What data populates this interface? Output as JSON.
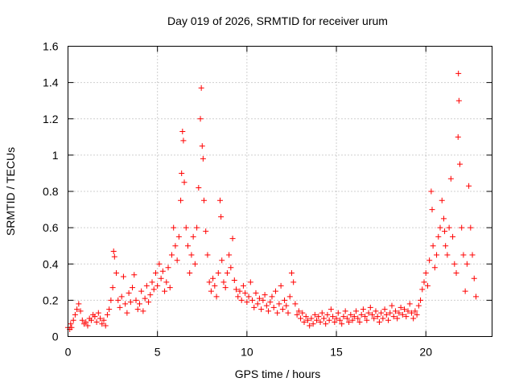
{
  "chart_data": {
    "type": "scatter",
    "title": "Day 019 of 2026, SRMTID for receiver urum",
    "xlabel": "GPS time / hours",
    "ylabel": "SRMTID / TECUs",
    "xlim": [
      0,
      23.7
    ],
    "ylim": [
      0,
      1.6
    ],
    "x_ticks": [
      0,
      5,
      10,
      15,
      20
    ],
    "x_tick_labels": [
      "0",
      "5",
      "10",
      "15",
      "20"
    ],
    "y_ticks": [
      0,
      0.2,
      0.4,
      0.6,
      0.8,
      1.0,
      1.2,
      1.4,
      1.6
    ],
    "y_tick_labels": [
      "0",
      "0.2",
      "0.4",
      "0.6",
      "0.8",
      "1",
      "1.2",
      "1.4",
      "1.6"
    ],
    "grid": true,
    "marker": "+",
    "series": [
      {
        "name": "SRMTID",
        "color": "#ff0000",
        "points": [
          [
            0.0,
            0.05
          ],
          [
            0.1,
            0.04
          ],
          [
            0.15,
            0.07
          ],
          [
            0.2,
            0.05
          ],
          [
            0.3,
            0.09
          ],
          [
            0.4,
            0.12
          ],
          [
            0.5,
            0.15
          ],
          [
            0.6,
            0.18
          ],
          [
            0.7,
            0.14
          ],
          [
            0.8,
            0.09
          ],
          [
            0.9,
            0.07
          ],
          [
            1.0,
            0.08
          ],
          [
            1.1,
            0.06
          ],
          [
            1.2,
            0.1
          ],
          [
            1.3,
            0.09
          ],
          [
            1.4,
            0.12
          ],
          [
            1.5,
            0.11
          ],
          [
            1.6,
            0.08
          ],
          [
            1.7,
            0.13
          ],
          [
            1.8,
            0.1
          ],
          [
            1.9,
            0.07
          ],
          [
            2.0,
            0.09
          ],
          [
            2.1,
            0.06
          ],
          [
            2.2,
            0.12
          ],
          [
            2.3,
            0.15
          ],
          [
            2.4,
            0.2
          ],
          [
            2.5,
            0.27
          ],
          [
            2.55,
            0.47
          ],
          [
            2.6,
            0.44
          ],
          [
            2.7,
            0.35
          ],
          [
            2.8,
            0.2
          ],
          [
            2.9,
            0.16
          ],
          [
            3.0,
            0.22
          ],
          [
            3.1,
            0.33
          ],
          [
            3.2,
            0.18
          ],
          [
            3.3,
            0.13
          ],
          [
            3.4,
            0.24
          ],
          [
            3.5,
            0.19
          ],
          [
            3.6,
            0.27
          ],
          [
            3.7,
            0.34
          ],
          [
            3.8,
            0.2
          ],
          [
            3.9,
            0.15
          ],
          [
            4.0,
            0.18
          ],
          [
            4.1,
            0.25
          ],
          [
            4.2,
            0.14
          ],
          [
            4.3,
            0.21
          ],
          [
            4.4,
            0.28
          ],
          [
            4.5,
            0.19
          ],
          [
            4.6,
            0.23
          ],
          [
            4.7,
            0.3
          ],
          [
            4.8,
            0.26
          ],
          [
            4.9,
            0.35
          ],
          [
            5.0,
            0.28
          ],
          [
            5.1,
            0.4
          ],
          [
            5.2,
            0.32
          ],
          [
            5.3,
            0.36
          ],
          [
            5.4,
            0.25
          ],
          [
            5.5,
            0.3
          ],
          [
            5.6,
            0.38
          ],
          [
            5.7,
            0.27
          ],
          [
            5.8,
            0.45
          ],
          [
            5.9,
            0.6
          ],
          [
            6.0,
            0.5
          ],
          [
            6.1,
            0.42
          ],
          [
            6.2,
            0.55
          ],
          [
            6.3,
            0.75
          ],
          [
            6.35,
            0.9
          ],
          [
            6.4,
            1.13
          ],
          [
            6.45,
            1.08
          ],
          [
            6.5,
            0.85
          ],
          [
            6.6,
            0.6
          ],
          [
            6.7,
            0.5
          ],
          [
            6.8,
            0.35
          ],
          [
            6.9,
            0.45
          ],
          [
            7.0,
            0.55
          ],
          [
            7.1,
            0.4
          ],
          [
            7.2,
            0.6
          ],
          [
            7.3,
            0.82
          ],
          [
            7.4,
            1.2
          ],
          [
            7.45,
            1.37
          ],
          [
            7.5,
            1.05
          ],
          [
            7.55,
            0.98
          ],
          [
            7.6,
            0.75
          ],
          [
            7.7,
            0.58
          ],
          [
            7.8,
            0.45
          ],
          [
            7.9,
            0.3
          ],
          [
            8.0,
            0.25
          ],
          [
            8.1,
            0.32
          ],
          [
            8.2,
            0.28
          ],
          [
            8.3,
            0.22
          ],
          [
            8.4,
            0.35
          ],
          [
            8.5,
            0.75
          ],
          [
            8.55,
            0.66
          ],
          [
            8.6,
            0.42
          ],
          [
            8.7,
            0.3
          ],
          [
            8.8,
            0.27
          ],
          [
            8.9,
            0.35
          ],
          [
            9.0,
            0.45
          ],
          [
            9.1,
            0.38
          ],
          [
            9.2,
            0.54
          ],
          [
            9.3,
            0.31
          ],
          [
            9.4,
            0.26
          ],
          [
            9.5,
            0.22
          ],
          [
            9.6,
            0.25
          ],
          [
            9.7,
            0.2
          ],
          [
            9.8,
            0.28
          ],
          [
            9.9,
            0.24
          ],
          [
            10.0,
            0.19
          ],
          [
            10.1,
            0.22
          ],
          [
            10.2,
            0.3
          ],
          [
            10.3,
            0.2
          ],
          [
            10.4,
            0.16
          ],
          [
            10.5,
            0.24
          ],
          [
            10.6,
            0.18
          ],
          [
            10.7,
            0.21
          ],
          [
            10.8,
            0.15
          ],
          [
            10.9,
            0.2
          ],
          [
            11.0,
            0.23
          ],
          [
            11.1,
            0.17
          ],
          [
            11.2,
            0.14
          ],
          [
            11.3,
            0.19
          ],
          [
            11.4,
            0.22
          ],
          [
            11.5,
            0.16
          ],
          [
            11.6,
            0.25
          ],
          [
            11.7,
            0.13
          ],
          [
            11.8,
            0.18
          ],
          [
            11.9,
            0.28
          ],
          [
            12.0,
            0.15
          ],
          [
            12.1,
            0.2
          ],
          [
            12.2,
            0.17
          ],
          [
            12.3,
            0.13
          ],
          [
            12.4,
            0.22
          ],
          [
            12.5,
            0.35
          ],
          [
            12.6,
            0.3
          ],
          [
            12.7,
            0.18
          ],
          [
            12.8,
            0.12
          ],
          [
            12.9,
            0.14
          ],
          [
            13.0,
            0.1
          ],
          [
            13.1,
            0.13
          ],
          [
            13.2,
            0.08
          ],
          [
            13.3,
            0.11
          ],
          [
            13.4,
            0.09
          ],
          [
            13.5,
            0.06
          ],
          [
            13.6,
            0.1
          ],
          [
            13.7,
            0.07
          ],
          [
            13.8,
            0.12
          ],
          [
            13.9,
            0.09
          ],
          [
            14.0,
            0.11
          ],
          [
            14.1,
            0.08
          ],
          [
            14.2,
            0.13
          ],
          [
            14.3,
            0.1
          ],
          [
            14.4,
            0.07
          ],
          [
            14.5,
            0.12
          ],
          [
            14.6,
            0.09
          ],
          [
            14.7,
            0.15
          ],
          [
            14.8,
            0.11
          ],
          [
            14.9,
            0.08
          ],
          [
            15.0,
            0.1
          ],
          [
            15.1,
            0.13
          ],
          [
            15.2,
            0.09
          ],
          [
            15.3,
            0.07
          ],
          [
            15.4,
            0.11
          ],
          [
            15.5,
            0.14
          ],
          [
            15.6,
            0.1
          ],
          [
            15.7,
            0.08
          ],
          [
            15.8,
            0.12
          ],
          [
            15.9,
            0.09
          ],
          [
            16.0,
            0.11
          ],
          [
            16.1,
            0.14
          ],
          [
            16.2,
            0.1
          ],
          [
            16.3,
            0.08
          ],
          [
            16.4,
            0.12
          ],
          [
            16.5,
            0.15
          ],
          [
            16.6,
            0.11
          ],
          [
            16.7,
            0.09
          ],
          [
            16.8,
            0.13
          ],
          [
            16.9,
            0.16
          ],
          [
            17.0,
            0.12
          ],
          [
            17.1,
            0.1
          ],
          [
            17.2,
            0.14
          ],
          [
            17.3,
            0.11
          ],
          [
            17.4,
            0.08
          ],
          [
            17.5,
            0.13
          ],
          [
            17.6,
            0.1
          ],
          [
            17.7,
            0.15
          ],
          [
            17.8,
            0.12
          ],
          [
            17.9,
            0.09
          ],
          [
            18.0,
            0.13
          ],
          [
            18.1,
            0.17
          ],
          [
            18.2,
            0.11
          ],
          [
            18.3,
            0.14
          ],
          [
            18.4,
            0.1
          ],
          [
            18.5,
            0.13
          ],
          [
            18.6,
            0.16
          ],
          [
            18.7,
            0.12
          ],
          [
            18.8,
            0.15
          ],
          [
            18.9,
            0.11
          ],
          [
            19.0,
            0.14
          ],
          [
            19.1,
            0.18
          ],
          [
            19.2,
            0.13
          ],
          [
            19.3,
            0.1
          ],
          [
            19.4,
            0.14
          ],
          [
            19.5,
            0.12
          ],
          [
            19.6,
            0.17
          ],
          [
            19.7,
            0.2
          ],
          [
            19.8,
            0.26
          ],
          [
            19.9,
            0.3
          ],
          [
            20.0,
            0.35
          ],
          [
            20.1,
            0.28
          ],
          [
            20.2,
            0.42
          ],
          [
            20.3,
            0.8
          ],
          [
            20.35,
            0.7
          ],
          [
            20.4,
            0.5
          ],
          [
            20.5,
            0.38
          ],
          [
            20.6,
            0.45
          ],
          [
            20.7,
            0.55
          ],
          [
            20.8,
            0.6
          ],
          [
            20.9,
            0.75
          ],
          [
            21.0,
            0.65
          ],
          [
            21.05,
            0.58
          ],
          [
            21.1,
            0.5
          ],
          [
            21.2,
            0.45
          ],
          [
            21.3,
            0.6
          ],
          [
            21.4,
            0.87
          ],
          [
            21.5,
            0.55
          ],
          [
            21.6,
            0.4
          ],
          [
            21.7,
            0.35
          ],
          [
            21.8,
            1.1
          ],
          [
            21.82,
            1.45
          ],
          [
            21.85,
            1.3
          ],
          [
            21.9,
            0.95
          ],
          [
            22.0,
            0.6
          ],
          [
            22.1,
            0.45
          ],
          [
            22.2,
            0.25
          ],
          [
            22.3,
            0.4
          ],
          [
            22.4,
            0.83
          ],
          [
            22.5,
            0.6
          ],
          [
            22.6,
            0.45
          ],
          [
            22.7,
            0.32
          ],
          [
            22.8,
            0.22
          ]
        ]
      }
    ]
  }
}
